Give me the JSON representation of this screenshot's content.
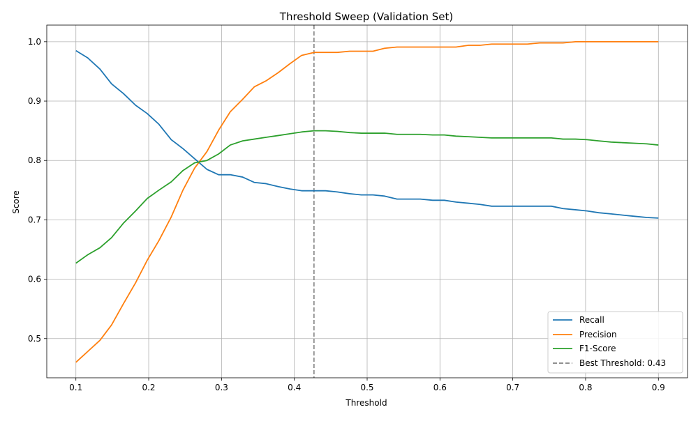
{
  "chart_data": {
    "type": "line",
    "title": "Threshold Sweep (Validation Set)",
    "xlabel": "Threshold",
    "ylabel": "Score",
    "xlim": [
      0.06,
      0.94
    ],
    "ylim": [
      0.434,
      1.028
    ],
    "xticks": [
      0.1,
      0.2,
      0.3,
      0.4,
      0.5,
      0.6,
      0.7,
      0.8,
      0.9
    ],
    "yticks": [
      0.5,
      0.6,
      0.7,
      0.8,
      0.9,
      1.0
    ],
    "xtick_labels": [
      "0.1",
      "0.2",
      "0.3",
      "0.4",
      "0.5",
      "0.6",
      "0.7",
      "0.8",
      "0.9"
    ],
    "ytick_labels": [
      "0.5",
      "0.6",
      "0.7",
      "0.8",
      "0.9",
      "1.0"
    ],
    "grid": true,
    "legend_position": "bottom-right",
    "x": [
      0.1,
      0.116,
      0.133,
      0.149,
      0.165,
      0.182,
      0.198,
      0.214,
      0.231,
      0.247,
      0.263,
      0.28,
      0.296,
      0.312,
      0.329,
      0.345,
      0.361,
      0.378,
      0.394,
      0.41,
      0.427,
      0.443,
      0.459,
      0.476,
      0.492,
      0.508,
      0.524,
      0.541,
      0.557,
      0.573,
      0.59,
      0.606,
      0.622,
      0.639,
      0.655,
      0.671,
      0.688,
      0.704,
      0.72,
      0.737,
      0.753,
      0.769,
      0.786,
      0.802,
      0.818,
      0.835,
      0.851,
      0.867,
      0.884,
      0.9
    ],
    "series": [
      {
        "name": "Recall",
        "color": "#1f77b4",
        "values": [
          0.985,
          0.973,
          0.954,
          0.929,
          0.913,
          0.893,
          0.879,
          0.861,
          0.835,
          0.82,
          0.803,
          0.785,
          0.776,
          0.776,
          0.772,
          0.763,
          0.761,
          0.756,
          0.752,
          0.749,
          0.749,
          0.749,
          0.747,
          0.744,
          0.742,
          0.742,
          0.74,
          0.735,
          0.735,
          0.735,
          0.733,
          0.733,
          0.73,
          0.728,
          0.726,
          0.723,
          0.723,
          0.723,
          0.723,
          0.723,
          0.723,
          0.719,
          0.717,
          0.715,
          0.712,
          0.71,
          0.708,
          0.706,
          0.704,
          0.703
        ]
      },
      {
        "name": "Precision",
        "color": "#ff7f0e",
        "values": [
          0.46,
          0.478,
          0.497,
          0.523,
          0.558,
          0.594,
          0.632,
          0.665,
          0.705,
          0.75,
          0.787,
          0.815,
          0.851,
          0.882,
          0.903,
          0.924,
          0.934,
          0.948,
          0.963,
          0.977,
          0.982,
          0.982,
          0.982,
          0.984,
          0.984,
          0.984,
          0.989,
          0.991,
          0.991,
          0.991,
          0.991,
          0.991,
          0.991,
          0.994,
          0.994,
          0.996,
          0.996,
          0.996,
          0.996,
          0.998,
          0.998,
          0.998,
          1.0,
          1.0,
          1.0,
          1.0,
          1.0,
          1.0,
          1.0,
          1.0
        ]
      },
      {
        "name": "F1-Score",
        "color": "#2ca02c",
        "values": [
          0.627,
          0.641,
          0.653,
          0.67,
          0.694,
          0.715,
          0.736,
          0.75,
          0.764,
          0.783,
          0.796,
          0.8,
          0.811,
          0.826,
          0.833,
          0.836,
          0.839,
          0.842,
          0.845,
          0.848,
          0.85,
          0.85,
          0.849,
          0.847,
          0.846,
          0.846,
          0.846,
          0.844,
          0.844,
          0.844,
          0.843,
          0.843,
          0.841,
          0.84,
          0.839,
          0.838,
          0.838,
          0.838,
          0.838,
          0.838,
          0.838,
          0.836,
          0.836,
          0.835,
          0.833,
          0.831,
          0.83,
          0.829,
          0.828,
          0.826
        ]
      }
    ],
    "reference_line": {
      "x": 0.427,
      "label": "Best Threshold: 0.43",
      "color": "#808080",
      "style": "dashed"
    }
  }
}
